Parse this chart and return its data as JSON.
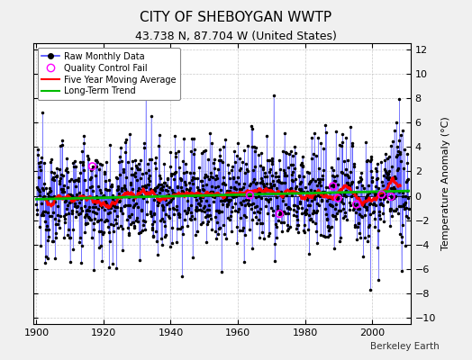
{
  "title": "CITY OF SHEBOYGAN WWTP",
  "subtitle": "43.738 N, 87.704 W (United States)",
  "ylabel": "Temperature Anomaly (°C)",
  "credit": "Berkeley Earth",
  "year_start": 1900,
  "year_end": 2011,
  "ylim": [
    -10.5,
    12.5
  ],
  "yticks": [
    -10,
    -8,
    -6,
    -4,
    -2,
    0,
    2,
    4,
    6,
    8,
    10,
    12
  ],
  "xticks": [
    1900,
    1920,
    1940,
    1960,
    1980,
    2000
  ],
  "background_color": "#f0f0f0",
  "plot_background": "#ffffff",
  "raw_line_color": "#4444ff",
  "raw_marker_color": "#000000",
  "moving_avg_color": "#ff0000",
  "trend_color": "#00bb00",
  "qc_fail_color": "#ff00ff",
  "seed": 12345
}
